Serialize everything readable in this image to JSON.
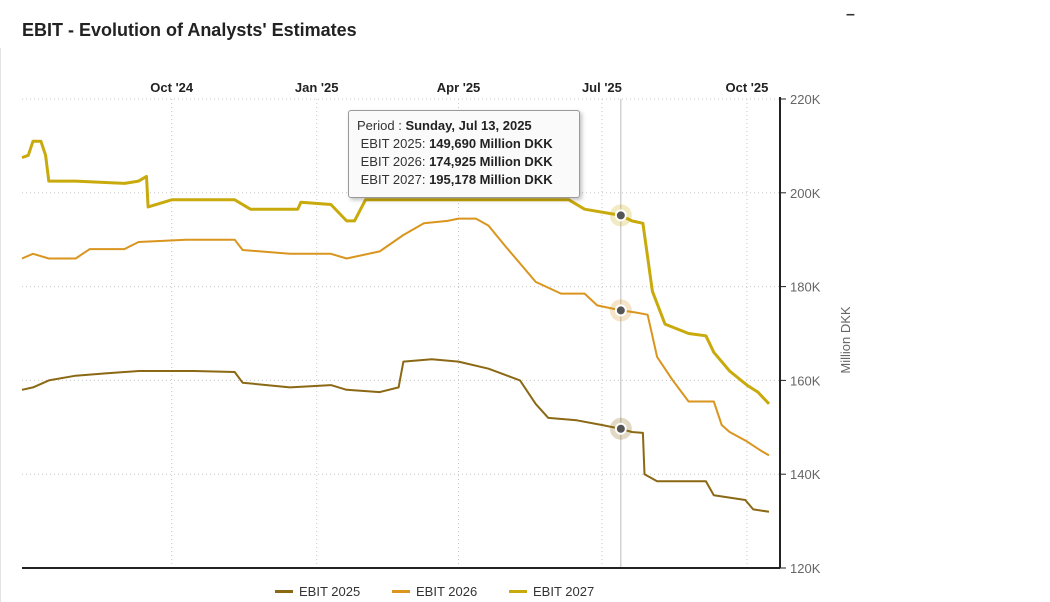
{
  "header": {
    "title": "EBIT - Evolution of Analysts' Estimates",
    "minimize_glyph": "–"
  },
  "tooltip": {
    "period_label": "Period :",
    "period_value": "Sunday, Jul 13, 2025",
    "rows": [
      {
        "label": "EBIT 2025:",
        "value": "149,690 Million DKK"
      },
      {
        "label": "EBIT 2026:",
        "value": "174,925 Million DKK"
      },
      {
        "label": "EBIT 2027:",
        "value": "195,178 Million DKK"
      }
    ]
  },
  "chart_data": {
    "type": "line",
    "title": "EBIT - Evolution of Analysts' Estimates",
    "ylabel": "Million DKK",
    "ylim": [
      120000,
      220000
    ],
    "y_ticks": [
      120000,
      140000,
      160000,
      180000,
      200000,
      220000
    ],
    "y_tick_labels": [
      "120K",
      "140K",
      "160K",
      "180K",
      "200K",
      "220K"
    ],
    "x_tick_labels": [
      "Oct '24",
      "Jan '25",
      "Apr '25",
      "Jul '25",
      "Oct '25"
    ],
    "x_tick_dates": [
      "2024-10-01",
      "2025-01-01",
      "2025-04-01",
      "2025-07-01",
      "2025-10-01"
    ],
    "x_range": [
      "2024-06-28",
      "2025-10-22"
    ],
    "grid": true,
    "legend_position": "bottom",
    "crosshair_date": "2025-07-13",
    "colors": {
      "EBIT 2025": "#8B6914",
      "EBIT 2026": "#D9951E",
      "EBIT 2027": "#C9AA0C"
    },
    "series": [
      {
        "name": "EBIT 2025",
        "points": [
          [
            "2024-06-28",
            158000
          ],
          [
            "2024-07-05",
            158500
          ],
          [
            "2024-07-15",
            160000
          ],
          [
            "2024-08-01",
            161000
          ],
          [
            "2024-08-20",
            161500
          ],
          [
            "2024-09-10",
            162000
          ],
          [
            "2024-10-15",
            162000
          ],
          [
            "2024-11-10",
            161800
          ],
          [
            "2024-11-15",
            159500
          ],
          [
            "2024-12-15",
            158500
          ],
          [
            "2025-01-10",
            159000
          ],
          [
            "2025-01-20",
            158000
          ],
          [
            "2025-02-10",
            157500
          ],
          [
            "2025-02-22",
            158500
          ],
          [
            "2025-02-25",
            164000
          ],
          [
            "2025-03-15",
            164500
          ],
          [
            "2025-04-01",
            164000
          ],
          [
            "2025-04-20",
            162500
          ],
          [
            "2025-05-10",
            160000
          ],
          [
            "2025-05-20",
            155000
          ],
          [
            "2025-05-28",
            152000
          ],
          [
            "2025-06-15",
            151500
          ],
          [
            "2025-07-01",
            150500
          ],
          [
            "2025-07-13",
            149690
          ],
          [
            "2025-07-20",
            149000
          ],
          [
            "2025-07-27",
            148800
          ],
          [
            "2025-07-28",
            140000
          ],
          [
            "2025-08-05",
            138500
          ],
          [
            "2025-09-05",
            138500
          ],
          [
            "2025-09-10",
            135500
          ],
          [
            "2025-09-20",
            135000
          ],
          [
            "2025-09-30",
            134500
          ],
          [
            "2025-10-05",
            132500
          ],
          [
            "2025-10-15",
            132000
          ]
        ]
      },
      {
        "name": "EBIT 2026",
        "points": [
          [
            "2024-06-28",
            186000
          ],
          [
            "2024-07-05",
            187000
          ],
          [
            "2024-07-15",
            186000
          ],
          [
            "2024-08-01",
            186000
          ],
          [
            "2024-08-10",
            188000
          ],
          [
            "2024-09-01",
            188000
          ],
          [
            "2024-09-10",
            189500
          ],
          [
            "2024-10-10",
            190000
          ],
          [
            "2024-11-10",
            190000
          ],
          [
            "2024-11-15",
            187800
          ],
          [
            "2024-12-15",
            187000
          ],
          [
            "2025-01-10",
            187000
          ],
          [
            "2025-01-20",
            186000
          ],
          [
            "2025-02-10",
            187500
          ],
          [
            "2025-02-25",
            191000
          ],
          [
            "2025-03-10",
            193500
          ],
          [
            "2025-03-25",
            194000
          ],
          [
            "2025-04-01",
            194500
          ],
          [
            "2025-04-12",
            194500
          ],
          [
            "2025-04-20",
            193000
          ],
          [
            "2025-05-01",
            188500
          ],
          [
            "2025-05-20",
            181000
          ],
          [
            "2025-06-05",
            178500
          ],
          [
            "2025-06-20",
            178500
          ],
          [
            "2025-06-28",
            176000
          ],
          [
            "2025-07-13",
            174925
          ],
          [
            "2025-07-22",
            174500
          ],
          [
            "2025-07-30",
            174000
          ],
          [
            "2025-08-05",
            165000
          ],
          [
            "2025-08-15",
            160000
          ],
          [
            "2025-08-25",
            155500
          ],
          [
            "2025-09-10",
            155500
          ],
          [
            "2025-09-15",
            150500
          ],
          [
            "2025-09-20",
            149000
          ],
          [
            "2025-10-01",
            147000
          ],
          [
            "2025-10-10",
            145000
          ],
          [
            "2025-10-15",
            144000
          ]
        ]
      },
      {
        "name": "EBIT 2027",
        "points": [
          [
            "2024-06-28",
            207500
          ],
          [
            "2024-07-02",
            208000
          ],
          [
            "2024-07-05",
            211000
          ],
          [
            "2024-07-10",
            211000
          ],
          [
            "2024-07-13",
            208000
          ],
          [
            "2024-07-15",
            202500
          ],
          [
            "2024-08-01",
            202500
          ],
          [
            "2024-09-01",
            202000
          ],
          [
            "2024-09-10",
            202500
          ],
          [
            "2024-09-15",
            203500
          ],
          [
            "2024-09-16",
            197000
          ],
          [
            "2024-10-01",
            198500
          ],
          [
            "2024-11-10",
            198500
          ],
          [
            "2024-11-20",
            196500
          ],
          [
            "2024-12-20",
            196500
          ],
          [
            "2024-12-22",
            198000
          ],
          [
            "2025-01-10",
            197500
          ],
          [
            "2025-01-20",
            194000
          ],
          [
            "2025-01-25",
            194000
          ],
          [
            "2025-02-01",
            198500
          ],
          [
            "2025-06-10",
            198500
          ],
          [
            "2025-06-20",
            196500
          ],
          [
            "2025-07-13",
            195178
          ],
          [
            "2025-07-20",
            194000
          ],
          [
            "2025-07-27",
            193500
          ],
          [
            "2025-08-02",
            179000
          ],
          [
            "2025-08-10",
            172000
          ],
          [
            "2025-08-25",
            170000
          ],
          [
            "2025-09-05",
            169500
          ],
          [
            "2025-09-10",
            166000
          ],
          [
            "2025-09-20",
            162000
          ],
          [
            "2025-10-01",
            159000
          ],
          [
            "2025-10-08",
            157500
          ],
          [
            "2025-10-15",
            155000
          ]
        ]
      }
    ]
  }
}
